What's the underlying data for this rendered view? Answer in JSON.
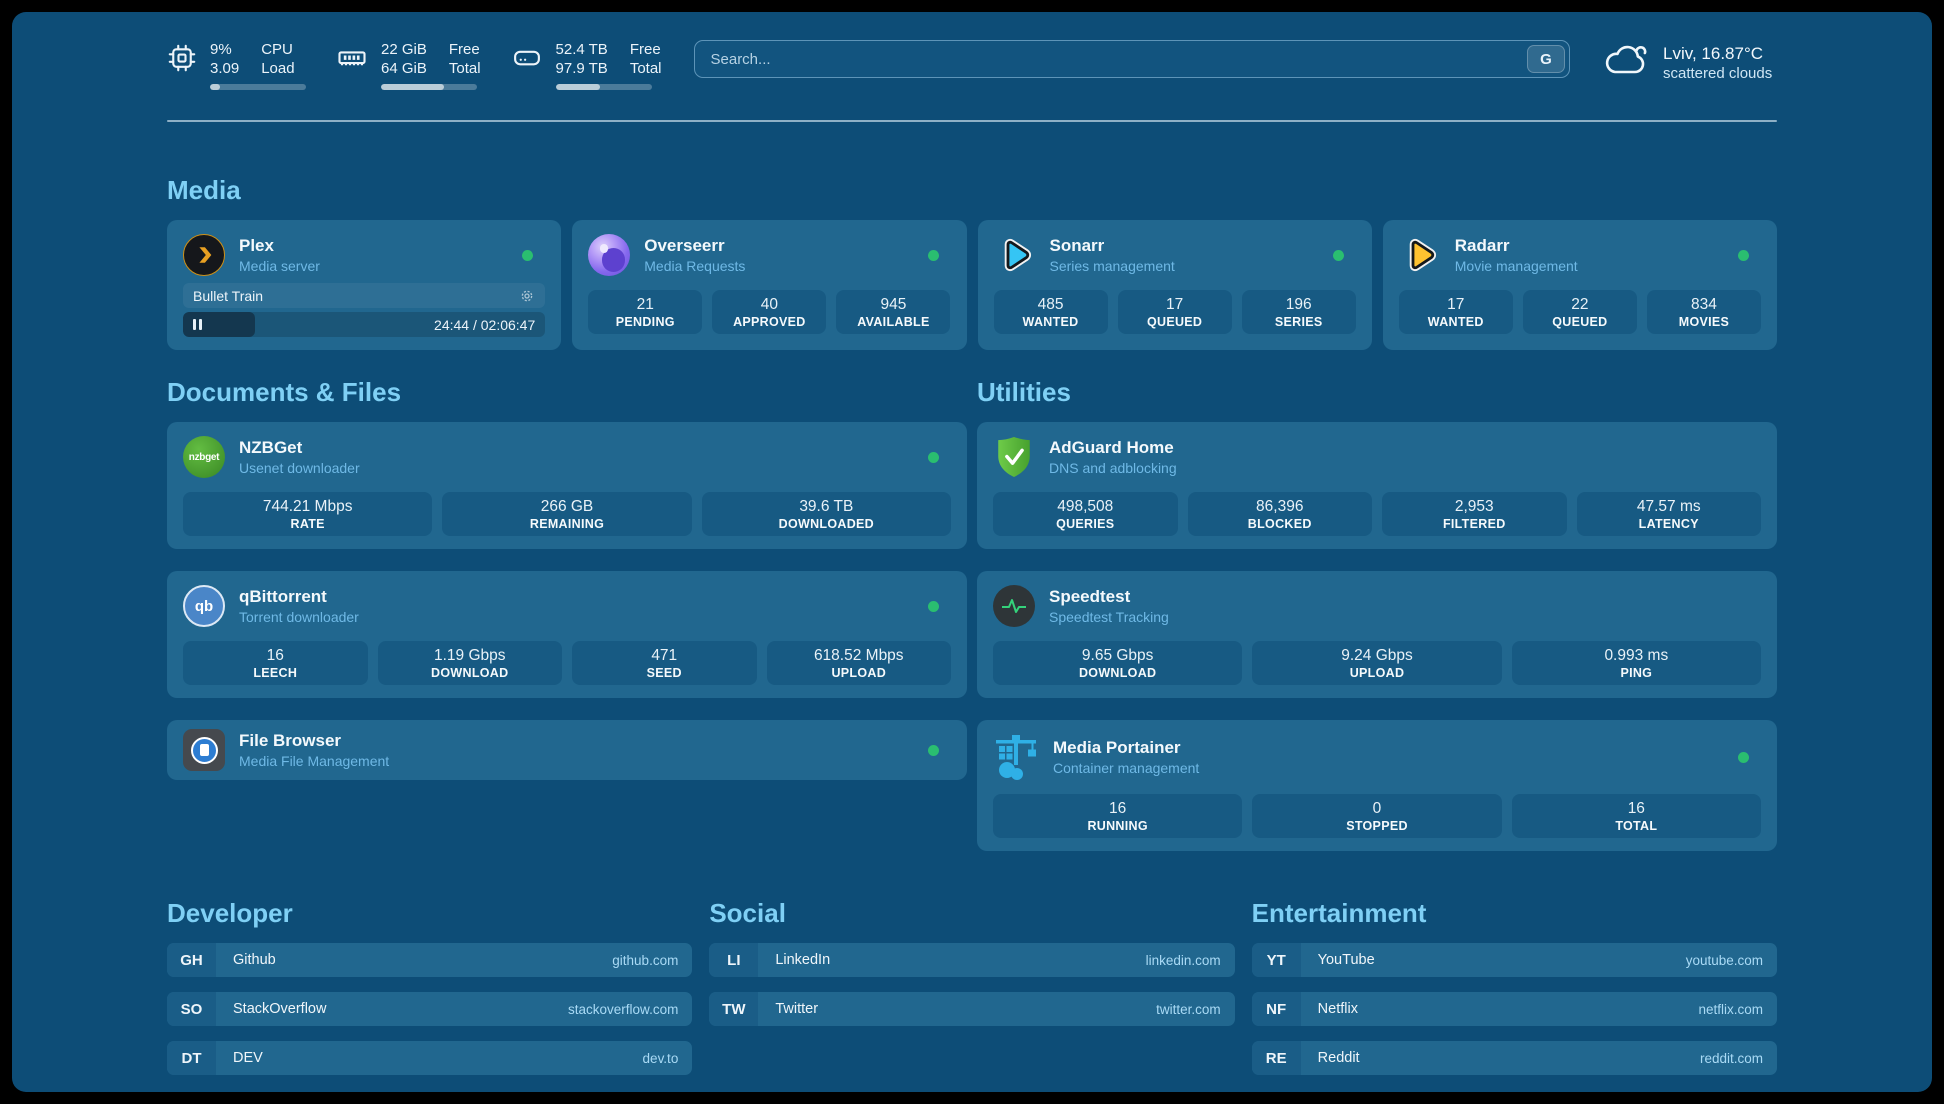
{
  "header": {
    "stats": [
      {
        "icon": "cpu-icon",
        "line1": "9%",
        "line2": "3.09",
        "label1": "CPU",
        "label2": "Load",
        "progress_pct": 10
      },
      {
        "icon": "memory-icon",
        "line1": "22 GiB",
        "line2": "64 GiB",
        "label1": "Free",
        "label2": "Total",
        "progress_pct": 66
      },
      {
        "icon": "disk-icon",
        "line1": "52.4 TB",
        "line2": "97.9 TB",
        "label1": "Free",
        "label2": "Total",
        "progress_pct": 46
      }
    ],
    "search": {
      "placeholder": "Search...",
      "button_label": "G"
    },
    "weather": {
      "icon": "cloud-icon",
      "location": "Lviv, 16.87°C",
      "condition": "scattered clouds"
    }
  },
  "sections": {
    "media": "Media",
    "documents": "Documents & Files",
    "utilities": "Utilities",
    "developer": "Developer",
    "social": "Social",
    "entertainment": "Entertainment"
  },
  "apps": {
    "plex": {
      "title": "Plex",
      "subtitle": "Media server",
      "status": "online",
      "player": {
        "track": "Bullet Train",
        "time": "24:44 / 02:06:47",
        "progress_pct": 20
      }
    },
    "overseerr": {
      "title": "Overseerr",
      "subtitle": "Media Requests",
      "status": "online",
      "stats": [
        {
          "value": "21",
          "label": "PENDING"
        },
        {
          "value": "40",
          "label": "APPROVED"
        },
        {
          "value": "945",
          "label": "AVAILABLE"
        }
      ]
    },
    "sonarr": {
      "title": "Sonarr",
      "subtitle": "Series management",
      "status": "online",
      "stats": [
        {
          "value": "485",
          "label": "WANTED"
        },
        {
          "value": "17",
          "label": "QUEUED"
        },
        {
          "value": "196",
          "label": "SERIES"
        }
      ]
    },
    "radarr": {
      "title": "Radarr",
      "subtitle": "Movie management",
      "status": "online",
      "stats": [
        {
          "value": "17",
          "label": "WANTED"
        },
        {
          "value": "22",
          "label": "QUEUED"
        },
        {
          "value": "834",
          "label": "MOVIES"
        }
      ]
    },
    "nzbget": {
      "title": "NZBGet",
      "subtitle": "Usenet downloader",
      "status": "online",
      "icon_text": "nzbget",
      "stats": [
        {
          "value": "744.21 Mbps",
          "label": "RATE"
        },
        {
          "value": "266 GB",
          "label": "REMAINING"
        },
        {
          "value": "39.6 TB",
          "label": "DOWNLOADED"
        }
      ]
    },
    "qbittorrent": {
      "title": "qBittorrent",
      "subtitle": "Torrent downloader",
      "status": "online",
      "icon_text": "qb",
      "stats": [
        {
          "value": "16",
          "label": "LEECH"
        },
        {
          "value": "1.19 Gbps",
          "label": "DOWNLOAD"
        },
        {
          "value": "471",
          "label": "SEED"
        },
        {
          "value": "618.52 Mbps",
          "label": "UPLOAD"
        }
      ]
    },
    "filebrowser": {
      "title": "File Browser",
      "subtitle": "Media File Management",
      "status": "online"
    },
    "adguard": {
      "title": "AdGuard Home",
      "subtitle": "DNS and adblocking",
      "stats": [
        {
          "value": "498,508",
          "label": "QUERIES"
        },
        {
          "value": "86,396",
          "label": "BLOCKED"
        },
        {
          "value": "2,953",
          "label": "FILTERED"
        },
        {
          "value": "47.57 ms",
          "label": "LATENCY"
        }
      ]
    },
    "speedtest": {
      "title": "Speedtest",
      "subtitle": "Speedtest Tracking",
      "stats": [
        {
          "value": "9.65 Gbps",
          "label": "DOWNLOAD"
        },
        {
          "value": "9.24 Gbps",
          "label": "UPLOAD"
        },
        {
          "value": "0.993 ms",
          "label": "PING"
        }
      ]
    },
    "portainer": {
      "title": "Media Portainer",
      "subtitle": "Container management",
      "status": "online",
      "stats": [
        {
          "value": "16",
          "label": "RUNNING"
        },
        {
          "value": "0",
          "label": "STOPPED"
        },
        {
          "value": "16",
          "label": "TOTAL"
        }
      ]
    }
  },
  "bookmarks": {
    "developer": [
      {
        "abbr": "GH",
        "name": "Github",
        "url": "github.com"
      },
      {
        "abbr": "SO",
        "name": "StackOverflow",
        "url": "stackoverflow.com"
      },
      {
        "abbr": "DT",
        "name": "DEV",
        "url": "dev.to"
      }
    ],
    "social": [
      {
        "abbr": "LI",
        "name": "LinkedIn",
        "url": "linkedin.com"
      },
      {
        "abbr": "TW",
        "name": "Twitter",
        "url": "twitter.com"
      }
    ],
    "entertainment": [
      {
        "abbr": "YT",
        "name": "YouTube",
        "url": "youtube.com"
      },
      {
        "abbr": "NF",
        "name": "Netflix",
        "url": "netflix.com"
      },
      {
        "abbr": "RE",
        "name": "Reddit",
        "url": "reddit.com"
      }
    ]
  },
  "colors": {
    "canvas_bg": "#0d4d77",
    "card_bg": "#21678f",
    "statbox_bg": "#175a83",
    "section_header": "#7fd0f5",
    "subtitle": "#6fb9e6",
    "url_text": "#a9daf5",
    "status_online": "#2abe70",
    "plex_brand": "#e8a022",
    "sonarr_brand": "#35c5f4",
    "radarr_brand": "#ffc230",
    "nzbget_brand": "#4aa52e",
    "qbittorrent_brand": "#4a86c8",
    "adguard_brand": "#5cbe3a",
    "speedtest_brand": "#34d27b",
    "portainer_brand": "#2fb0e6"
  }
}
